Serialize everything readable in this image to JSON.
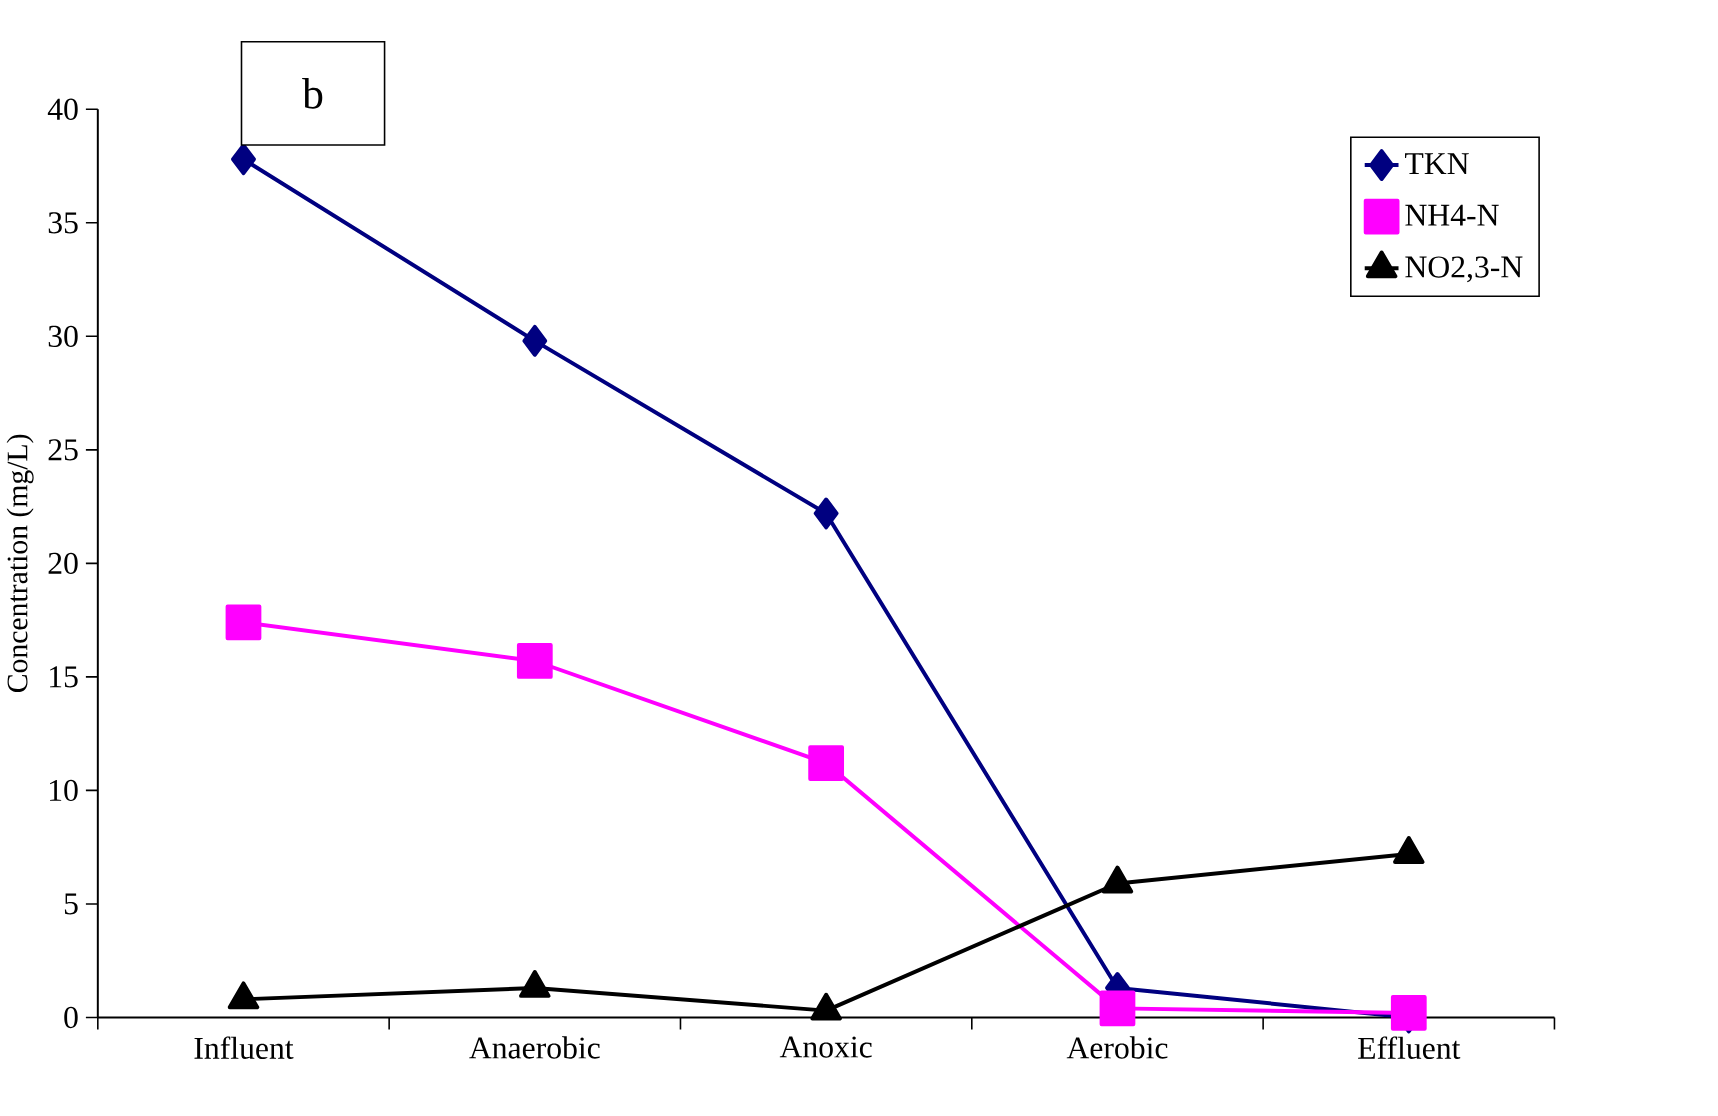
{
  "chart_data": {
    "type": "line",
    "ylabel": "Concentration (mg/L)",
    "annotations": [
      "b"
    ],
    "categories": [
      "Influent",
      "Anaerobic",
      "Anoxic",
      "Aerobic",
      "Effluent"
    ],
    "series": [
      {
        "name": "TKN",
        "color": "#000080",
        "marker": "diamond",
        "values": [
          37.8,
          29.8,
          22.2,
          1.3,
          0
        ]
      },
      {
        "name": "NH4-N",
        "color": "#ff00ff",
        "marker": "square",
        "values": [
          17.4,
          15.7,
          11.2,
          0.4,
          0.2
        ]
      },
      {
        "name": "NO2,3-N",
        "color": "#000000",
        "marker": "triangle",
        "values": [
          0.8,
          1.3,
          0.3,
          5.9,
          7.2
        ]
      }
    ],
    "ylim": [
      0,
      40
    ],
    "yticks": [
      0,
      5,
      10,
      15,
      20,
      25,
      30,
      35,
      40
    ],
    "grid": false,
    "legend": "top right"
  }
}
